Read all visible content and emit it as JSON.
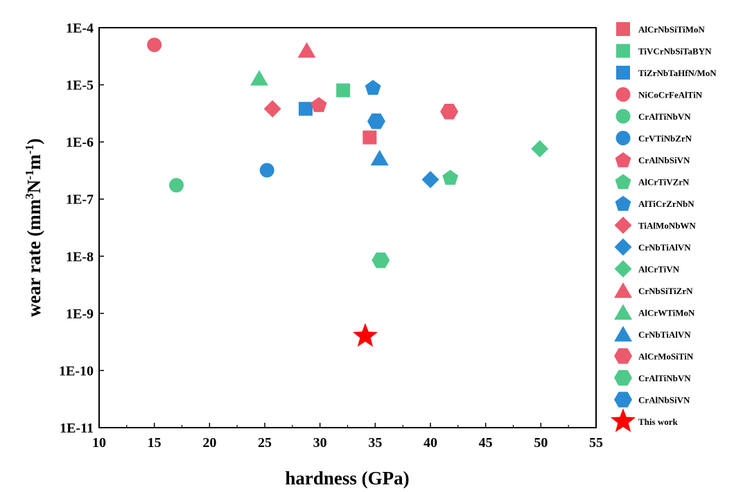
{
  "chart_data": {
    "type": "scatter",
    "xlabel": "hardness (GPa)",
    "ylabel_parts": {
      "base": "wear rate (mm",
      "sup1": "3",
      "mid1": "N",
      "sup2": "-1",
      "mid2": "m",
      "sup3": "-1",
      "end": ")"
    },
    "xlim": [
      10,
      55
    ],
    "ylim": [
      1e-11,
      0.0001
    ],
    "yscale": "log",
    "grid": false,
    "legend_position": "right",
    "x_ticks": [
      10,
      15,
      20,
      25,
      30,
      35,
      40,
      45,
      50,
      55
    ],
    "x_tick_labels": [
      "10",
      "15",
      "20",
      "25",
      "30",
      "35",
      "40",
      "45",
      "50",
      "55"
    ],
    "y_ticks": [
      1e-11,
      1e-10,
      1e-09,
      1e-08,
      1e-07,
      1e-06,
      1e-05,
      0.0001
    ],
    "y_tick_labels": [
      "1E-11",
      "1E-10",
      "1E-9",
      "1E-8",
      "1E-7",
      "1E-6",
      "1E-5",
      "1E-4"
    ],
    "colors": {
      "red": "#ec5a6e",
      "green": "#4fc98a",
      "blue": "#2a8bd4",
      "star": "#ff0000"
    },
    "series": [
      {
        "name": "AlCrNbSiTiMoN",
        "marker": "square",
        "color": "red",
        "points": [
          [
            34.5,
            1.2e-06
          ]
        ]
      },
      {
        "name": "TiVCrNbSiTaBYN",
        "marker": "square",
        "color": "green",
        "points": [
          [
            32.1,
            8e-06
          ]
        ]
      },
      {
        "name": "TiZrNbTaHfN/MoN",
        "marker": "square",
        "color": "blue",
        "points": [
          [
            28.7,
            3.8e-06
          ]
        ]
      },
      {
        "name": "NiCoCrFeAlTiN",
        "marker": "circle",
        "color": "red",
        "points": [
          [
            15,
            5e-05
          ]
        ]
      },
      {
        "name": "CrAlTiNbVN",
        "marker": "circle",
        "color": "green",
        "points": [
          [
            17,
            1.75e-07
          ]
        ]
      },
      {
        "name": "CrVTiNbZrN",
        "marker": "circle",
        "color": "blue",
        "points": [
          [
            25.2,
            3.2e-07
          ]
        ]
      },
      {
        "name": "CrAlNbSiVN",
        "marker": "pentagon",
        "color": "red",
        "points": [
          [
            29.9,
            4.5e-06
          ]
        ]
      },
      {
        "name": "AlCrTiVZrN",
        "marker": "pentagon",
        "color": "green",
        "points": [
          [
            41.8,
            2.4e-07
          ]
        ]
      },
      {
        "name": "AlTiCrZrNbN",
        "marker": "pentagon",
        "color": "blue",
        "points": [
          [
            34.8,
            9e-06
          ]
        ]
      },
      {
        "name": "TiAlMoNbWN",
        "marker": "diamond",
        "color": "red",
        "points": [
          [
            25.7,
            3.8e-06
          ]
        ]
      },
      {
        "name": "CrNbTiAlVN",
        "marker": "diamond",
        "color": "blue",
        "points": [
          [
            40,
            2.2e-07
          ]
        ]
      },
      {
        "name": "AlCrTiVN",
        "marker": "diamond",
        "color": "green",
        "points": [
          [
            49.9,
            7.6e-07
          ]
        ]
      },
      {
        "name": "CrNbSiTiZrN",
        "marker": "triangle",
        "color": "red",
        "points": [
          [
            28.8,
            4e-05
          ]
        ]
      },
      {
        "name": "AlCrWTiMoN",
        "marker": "triangle",
        "color": "green",
        "points": [
          [
            24.5,
            1.3e-05
          ]
        ]
      },
      {
        "name": "CrNbTiAlVN",
        "marker": "triangle",
        "color": "blue",
        "points": [
          [
            35.4,
            5.2e-07
          ]
        ]
      },
      {
        "name": "AlCrMoSiTiN",
        "marker": "hexagon",
        "color": "red",
        "points": [
          [
            41.7,
            3.4e-06
          ]
        ]
      },
      {
        "name": "CrAlTiNbVN",
        "marker": "hexagon",
        "color": "green",
        "points": [
          [
            35.5,
            8.5e-09
          ]
        ]
      },
      {
        "name": "CrAlNbSiVN",
        "marker": "hexagon",
        "color": "blue",
        "points": [
          [
            35.1,
            2.3e-06
          ]
        ]
      },
      {
        "name": "This work",
        "marker": "star",
        "color": "star",
        "points": [
          [
            34.1,
            4e-10
          ]
        ]
      }
    ]
  }
}
